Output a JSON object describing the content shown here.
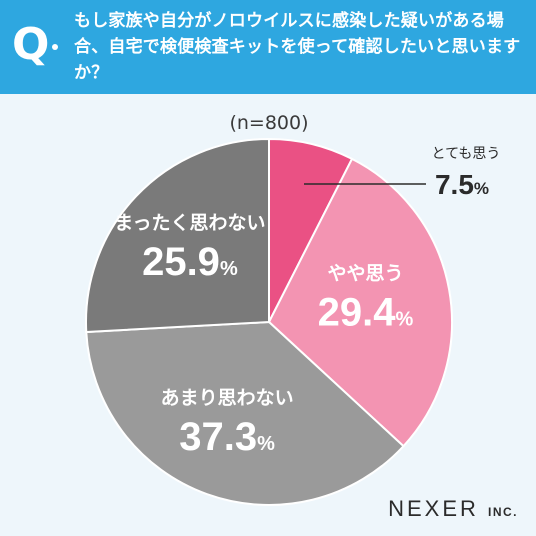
{
  "header": {
    "q_mark": "Q",
    "question": "もし家族や自分がノロウイルスに感染した疑いがある場合、自宅で検便検査キットを使って確認したいと思いますか？"
  },
  "chart_data": {
    "type": "pie",
    "sample_note": "(n=800)",
    "start": "12 o'clock",
    "direction": "clockwise",
    "slices": [
      {
        "label": "とても思う",
        "value": 7.5,
        "display": "7.5",
        "unit": "%",
        "color": "#ea5184"
      },
      {
        "label": "やや思う",
        "value": 29.4,
        "display": "29.4",
        "unit": "%",
        "color": "#f394b2"
      },
      {
        "label": "あまり思わない",
        "value": 37.3,
        "display": "37.3",
        "unit": "%",
        "color": "#9a9a9a"
      },
      {
        "label": "まったく思わない",
        "value": 25.9,
        "display": "25.9",
        "unit": "%",
        "color": "#7a7a7a"
      }
    ]
  },
  "footer": {
    "brand": "NEXER",
    "brand_suffix": "INC."
  }
}
